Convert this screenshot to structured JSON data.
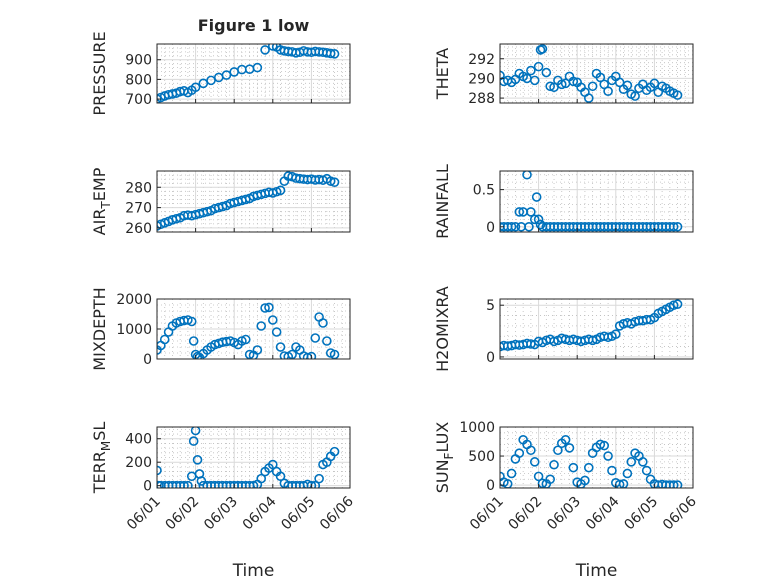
{
  "figure": {
    "title": "Figure 1 low",
    "xlabel": "Time",
    "x_tick_labels": [
      "06/01",
      "06/02",
      "06/03",
      "06/04",
      "06/05",
      "06/06"
    ],
    "marker_color": "#0072bd"
  },
  "chart_data": [
    {
      "type": "scatter",
      "name": "PRESSURE",
      "ylabel": "PRESSURE",
      "ylim": [
        680,
        980
      ],
      "yticks": [
        700,
        800,
        900
      ],
      "xlim": [
        0,
        5
      ],
      "grid": true,
      "x": [
        0.0,
        0.1,
        0.2,
        0.3,
        0.4,
        0.5,
        0.6,
        0.7,
        0.8,
        0.9,
        1.0,
        1.2,
        1.4,
        1.6,
        1.8,
        2.0,
        2.2,
        2.4,
        2.6,
        2.8,
        3.0,
        3.1,
        3.2,
        3.3,
        3.4,
        3.5,
        3.6,
        3.7,
        3.8,
        3.9,
        4.0,
        4.1,
        4.2,
        4.3,
        4.4,
        4.5,
        4.6
      ],
      "y": [
        700,
        708,
        716,
        722,
        726,
        730,
        738,
        742,
        733,
        745,
        760,
        780,
        795,
        810,
        822,
        838,
        850,
        852,
        860,
        950,
        970,
        965,
        950,
        945,
        942,
        940,
        935,
        938,
        945,
        940,
        938,
        942,
        940,
        938,
        935,
        932,
        930
      ]
    },
    {
      "type": "scatter",
      "name": "THETA",
      "ylabel": "THETA",
      "ylim": [
        287.5,
        293.5
      ],
      "yticks": [
        288,
        290,
        292
      ],
      "xlim": [
        0,
        5
      ],
      "grid": true,
      "x": [
        0.0,
        0.1,
        0.2,
        0.3,
        0.4,
        0.5,
        0.6,
        0.7,
        0.8,
        0.9,
        1.0,
        1.05,
        1.1,
        1.2,
        1.3,
        1.4,
        1.5,
        1.6,
        1.7,
        1.8,
        1.9,
        2.0,
        2.1,
        2.2,
        2.3,
        2.4,
        2.5,
        2.6,
        2.7,
        2.8,
        2.9,
        3.0,
        3.1,
        3.2,
        3.3,
        3.4,
        3.5,
        3.6,
        3.7,
        3.8,
        3.9,
        4.0,
        4.1,
        4.2,
        4.3,
        4.4,
        4.5,
        4.6
      ],
      "y": [
        290.3,
        289.7,
        289.8,
        289.6,
        289.9,
        290.5,
        290.2,
        290.0,
        290.8,
        289.8,
        291.2,
        292.9,
        293.0,
        290.6,
        289.2,
        289.1,
        289.8,
        289.4,
        289.5,
        290.2,
        289.7,
        289.6,
        289.1,
        288.6,
        288.0,
        289.2,
        290.5,
        290.1,
        289.4,
        288.7,
        289.8,
        290.2,
        289.6,
        288.9,
        289.3,
        288.4,
        288.2,
        289.0,
        289.4,
        288.8,
        289.1,
        289.5,
        288.6,
        289.2,
        289.0,
        288.7,
        288.5,
        288.3
      ]
    },
    {
      "type": "scatter",
      "name": "AIR_TEMP",
      "ylabel": "AIR_TEMP",
      "ylim": [
        258,
        288
      ],
      "yticks": [
        260,
        270,
        280
      ],
      "xlim": [
        0,
        5
      ],
      "grid": true,
      "x": [
        0.0,
        0.1,
        0.2,
        0.3,
        0.4,
        0.5,
        0.6,
        0.7,
        0.8,
        0.9,
        1.0,
        1.1,
        1.2,
        1.3,
        1.4,
        1.5,
        1.6,
        1.7,
        1.8,
        1.9,
        2.0,
        2.1,
        2.2,
        2.3,
        2.4,
        2.5,
        2.6,
        2.7,
        2.8,
        2.9,
        3.0,
        3.1,
        3.2,
        3.3,
        3.4,
        3.5,
        3.6,
        3.7,
        3.8,
        3.9,
        4.0,
        4.1,
        4.2,
        4.3,
        4.4,
        4.5,
        4.6
      ],
      "y": [
        261.0,
        261.8,
        262.5,
        263.2,
        264.0,
        264.5,
        265.0,
        266.0,
        266.3,
        266.0,
        266.5,
        267.0,
        267.5,
        268.0,
        268.5,
        269.5,
        270.0,
        270.5,
        271.0,
        272.0,
        272.5,
        273.0,
        273.5,
        274.0,
        274.5,
        275.5,
        276.0,
        276.5,
        277.0,
        277.5,
        277.2,
        277.8,
        278.5,
        283.0,
        285.5,
        285.2,
        284.5,
        284.2,
        284.0,
        283.8,
        284.0,
        283.6,
        283.8,
        283.5,
        284.2,
        283.0,
        282.5
      ]
    },
    {
      "type": "scatter",
      "name": "RAINFALL",
      "ylabel": "RAINFALL",
      "ylim": [
        -0.07,
        0.75
      ],
      "yticks": [
        0,
        0.5
      ],
      "xlim": [
        0,
        5
      ],
      "grid": true,
      "x": [
        0.0,
        0.1,
        0.2,
        0.3,
        0.4,
        0.5,
        0.55,
        0.6,
        0.7,
        0.75,
        0.8,
        0.9,
        0.95,
        1.0,
        1.05,
        1.1,
        1.2,
        1.3,
        1.4,
        1.5,
        1.6,
        1.7,
        1.8,
        1.9,
        2.0,
        2.1,
        2.2,
        2.3,
        2.4,
        2.5,
        2.6,
        2.7,
        2.8,
        2.9,
        3.0,
        3.1,
        3.2,
        3.3,
        3.4,
        3.5,
        3.6,
        3.7,
        3.8,
        3.9,
        4.0,
        4.1,
        4.2,
        4.3,
        4.4,
        4.5,
        4.6
      ],
      "y": [
        0,
        0,
        0,
        0,
        0,
        0.2,
        0,
        0.2,
        0.7,
        0,
        0.2,
        0.1,
        0.4,
        0.1,
        0.03,
        0,
        0,
        0,
        0,
        0,
        0,
        0,
        0,
        0,
        0,
        0,
        0,
        0,
        0,
        0,
        0,
        0,
        0,
        0,
        0,
        0,
        0,
        0,
        0,
        0,
        0,
        0,
        0,
        0,
        0,
        0,
        0,
        0,
        0,
        0,
        0
      ]
    },
    {
      "type": "scatter",
      "name": "MIXDEPTH",
      "ylabel": "MIXDEPTH",
      "ylim": [
        0,
        2000
      ],
      "yticks": [
        0,
        1000,
        2000
      ],
      "xlim": [
        0,
        5
      ],
      "grid": true,
      "x": [
        0.0,
        0.1,
        0.2,
        0.3,
        0.4,
        0.5,
        0.6,
        0.7,
        0.8,
        0.9,
        0.95,
        1.0,
        1.05,
        1.1,
        1.2,
        1.3,
        1.4,
        1.5,
        1.6,
        1.7,
        1.8,
        1.9,
        2.0,
        2.1,
        2.2,
        2.3,
        2.4,
        2.5,
        2.6,
        2.7,
        2.8,
        2.9,
        3.0,
        3.1,
        3.2,
        3.3,
        3.4,
        3.5,
        3.6,
        3.7,
        3.8,
        3.9,
        4.0,
        4.1,
        4.2,
        4.3,
        4.4,
        4.5,
        4.6
      ],
      "y": [
        300,
        450,
        650,
        900,
        1100,
        1200,
        1250,
        1280,
        1300,
        1250,
        600,
        150,
        80,
        50,
        180,
        300,
        400,
        480,
        520,
        560,
        580,
        600,
        550,
        480,
        600,
        650,
        150,
        120,
        300,
        1100,
        1700,
        1720,
        1300,
        900,
        400,
        100,
        80,
        150,
        400,
        300,
        100,
        50,
        80,
        700,
        1400,
        1200,
        600,
        200,
        150
      ]
    },
    {
      "type": "scatter",
      "name": "H2OMIXRA",
      "ylabel": "H2OMIXRA",
      "ylim": [
        -0.2,
        5.6
      ],
      "yticks": [
        0,
        5
      ],
      "xlim": [
        0,
        5
      ],
      "grid": true,
      "x": [
        0.0,
        0.1,
        0.2,
        0.3,
        0.4,
        0.5,
        0.6,
        0.7,
        0.8,
        0.9,
        1.0,
        1.1,
        1.2,
        1.3,
        1.4,
        1.5,
        1.6,
        1.7,
        1.8,
        1.9,
        2.0,
        2.1,
        2.2,
        2.3,
        2.4,
        2.5,
        2.6,
        2.7,
        2.8,
        2.9,
        3.0,
        3.1,
        3.2,
        3.3,
        3.4,
        3.5,
        3.6,
        3.7,
        3.8,
        3.9,
        4.0,
        4.1,
        4.2,
        4.3,
        4.4,
        4.5,
        4.6
      ],
      "y": [
        1.0,
        1.1,
        1.05,
        1.1,
        1.2,
        1.15,
        1.2,
        1.3,
        1.25,
        1.2,
        1.5,
        1.4,
        1.6,
        1.7,
        1.5,
        1.6,
        1.8,
        1.7,
        1.6,
        1.7,
        1.6,
        1.5,
        1.6,
        1.7,
        1.6,
        1.7,
        1.9,
        2.0,
        1.9,
        2.0,
        2.2,
        3.0,
        3.2,
        3.3,
        3.2,
        3.4,
        3.5,
        3.5,
        3.6,
        3.6,
        3.8,
        4.2,
        4.4,
        4.6,
        4.8,
        5.0,
        5.1
      ]
    },
    {
      "type": "scatter",
      "name": "TERR_MSL",
      "ylabel": "TERR_MSL",
      "ylim": [
        -20,
        500
      ],
      "yticks": [
        0,
        200,
        400
      ],
      "xlim": [
        0,
        5
      ],
      "grid": true,
      "x": [
        0.0,
        0.05,
        0.1,
        0.2,
        0.3,
        0.4,
        0.5,
        0.6,
        0.7,
        0.8,
        0.9,
        0.95,
        1.0,
        1.05,
        1.1,
        1.15,
        1.2,
        1.3,
        1.4,
        1.5,
        1.6,
        1.7,
        1.8,
        1.9,
        2.0,
        2.1,
        2.2,
        2.3,
        2.4,
        2.5,
        2.6,
        2.7,
        2.8,
        2.9,
        3.0,
        3.1,
        3.2,
        3.3,
        3.4,
        3.5,
        3.6,
        3.7,
        3.8,
        3.9,
        4.0,
        4.1,
        4.2,
        4.3,
        4.4,
        4.5,
        4.6
      ],
      "y": [
        130,
        0,
        0,
        0,
        0,
        0,
        0,
        0,
        0,
        0,
        80,
        380,
        470,
        220,
        100,
        40,
        0,
        0,
        0,
        0,
        0,
        0,
        0,
        0,
        0,
        0,
        0,
        0,
        0,
        0,
        10,
        60,
        120,
        150,
        180,
        120,
        80,
        20,
        0,
        0,
        0,
        0,
        0,
        10,
        0,
        0,
        60,
        180,
        200,
        250,
        290
      ]
    },
    {
      "type": "scatter",
      "name": "SUN_FLUX",
      "ylabel": "SUN_FLUX",
      "ylim": [
        -50,
        1000
      ],
      "yticks": [
        0,
        500,
        1000
      ],
      "xlim": [
        0,
        5
      ],
      "grid": true,
      "x": [
        0.0,
        0.1,
        0.2,
        0.3,
        0.4,
        0.5,
        0.6,
        0.7,
        0.8,
        0.9,
        1.0,
        1.1,
        1.2,
        1.3,
        1.4,
        1.5,
        1.6,
        1.7,
        1.8,
        1.9,
        2.0,
        2.1,
        2.2,
        2.3,
        2.4,
        2.5,
        2.6,
        2.7,
        2.8,
        2.9,
        3.0,
        3.1,
        3.2,
        3.3,
        3.4,
        3.5,
        3.6,
        3.7,
        3.8,
        3.9,
        4.0,
        4.1,
        4.2,
        4.3,
        4.4,
        4.5,
        4.6
      ],
      "y": [
        150,
        50,
        20,
        200,
        450,
        550,
        780,
        700,
        600,
        400,
        150,
        30,
        20,
        100,
        350,
        600,
        720,
        780,
        640,
        300,
        50,
        20,
        80,
        300,
        550,
        650,
        700,
        680,
        500,
        250,
        40,
        10,
        20,
        200,
        400,
        550,
        500,
        400,
        250,
        100,
        20,
        0,
        10,
        0,
        0,
        0,
        0
      ]
    }
  ]
}
